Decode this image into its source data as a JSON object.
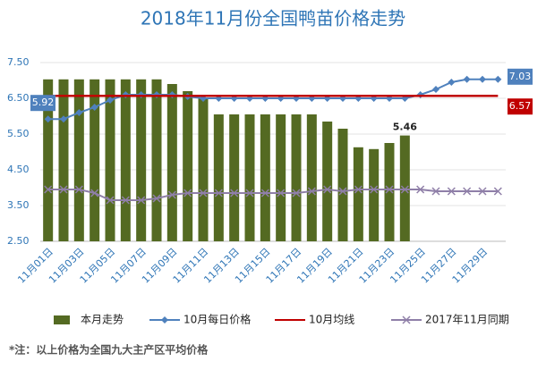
{
  "chart_data": {
    "type": "bar",
    "title": "2018年11月份全国鸭苗价格走势",
    "categories": [
      "11月01日",
      null,
      "11月03日",
      null,
      "11月05日",
      null,
      "11月07日",
      null,
      "11月09日",
      null,
      "11月11日",
      null,
      "11月13日",
      null,
      "11月15日",
      null,
      "11月17日",
      null,
      "11月19日",
      null,
      "11月21日",
      null,
      "11月23日",
      null,
      "11月25日",
      null,
      "11月27日",
      null,
      "11月29日",
      null
    ],
    "series": [
      {
        "name": "本月走势",
        "type": "bar",
        "color": "#546a22",
        "values": [
          7.03,
          7.03,
          7.03,
          7.03,
          7.03,
          7.03,
          7.03,
          7.03,
          6.9,
          6.7,
          6.5,
          6.05,
          6.05,
          6.05,
          6.05,
          6.05,
          6.05,
          6.05,
          5.85,
          5.65,
          5.13,
          5.08,
          5.25,
          5.46,
          null,
          null,
          null,
          null,
          null,
          null
        ]
      },
      {
        "name": "10月每日价格",
        "type": "line",
        "marker": "diamond",
        "color": "#4f81bd",
        "values": [
          5.92,
          5.92,
          6.1,
          6.25,
          6.45,
          6.6,
          6.6,
          6.6,
          6.6,
          6.55,
          6.5,
          6.5,
          6.5,
          6.5,
          6.5,
          6.5,
          6.5,
          6.5,
          6.5,
          6.5,
          6.5,
          6.5,
          6.5,
          6.5,
          6.6,
          6.75,
          6.95,
          7.03,
          7.03,
          7.03
        ]
      },
      {
        "name": "10月均线",
        "type": "line",
        "marker": "none",
        "color": "#c00000",
        "values": [
          6.57,
          6.57,
          6.57,
          6.57,
          6.57,
          6.57,
          6.57,
          6.57,
          6.57,
          6.57,
          6.57,
          6.57,
          6.57,
          6.57,
          6.57,
          6.57,
          6.57,
          6.57,
          6.57,
          6.57,
          6.57,
          6.57,
          6.57,
          6.57,
          6.57,
          6.57,
          6.57,
          6.57,
          6.57,
          6.57
        ]
      },
      {
        "name": "2017年11月同期",
        "type": "line",
        "marker": "x",
        "color": "#8f7fa8",
        "values": [
          3.95,
          3.95,
          3.95,
          3.85,
          3.65,
          3.65,
          3.65,
          3.7,
          3.8,
          3.85,
          3.85,
          3.85,
          3.85,
          3.85,
          3.85,
          3.85,
          3.85,
          3.9,
          3.95,
          3.9,
          3.95,
          3.95,
          3.95,
          3.95,
          3.95,
          3.9,
          3.9,
          3.9,
          3.9,
          3.9
        ]
      }
    ],
    "ylim": [
      2.5,
      7.5
    ],
    "yticks": [
      {
        "value": 2.5,
        "label": "2.50"
      },
      {
        "value": 3.5,
        "label": "3.50"
      },
      {
        "value": 4.5,
        "label": "4.50"
      },
      {
        "value": 5.5,
        "label": "5.50"
      },
      {
        "value": 6.5,
        "label": "6.50"
      },
      {
        "value": 7.5,
        "label": "7.50"
      }
    ],
    "grid": true,
    "footnote": "*注：以上价格为全国九大主产区平均价格"
  }
}
